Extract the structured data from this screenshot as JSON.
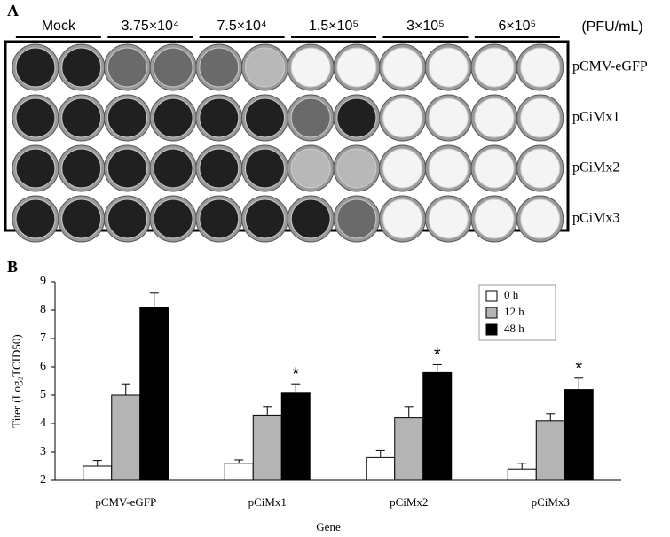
{
  "panel_a": {
    "label": "A",
    "columns": [
      "Mock",
      "3.75×10⁴",
      "7.5×10⁴",
      "1.5×10⁵",
      "3×10⁵",
      "6×10⁵"
    ],
    "unit": "(PFU/mL)",
    "rows": [
      "pCMV-eGFP",
      "pCiMx1",
      "pCiMx2",
      "pCiMx3"
    ]
  },
  "chart_data": {
    "type": "bar",
    "panel_label": "B",
    "x_label": "Gene",
    "y_label": "Titer (Log₂TCID50)",
    "categories": [
      "pCMV-eGFP",
      "pCiMx1",
      "pCiMx2",
      "pCiMx3"
    ],
    "series": [
      {
        "name": "0 h",
        "color": "#ffffff",
        "values": [
          2.5,
          2.6,
          2.8,
          2.4
        ],
        "errors": [
          0.2,
          0.12,
          0.25,
          0.2
        ]
      },
      {
        "name": "12 h",
        "color": "#b4b4b4",
        "values": [
          5.0,
          4.3,
          4.2,
          4.1
        ],
        "errors": [
          0.4,
          0.3,
          0.4,
          0.25
        ]
      },
      {
        "name": "48 h",
        "color": "#000000",
        "values": [
          8.1,
          5.1,
          5.8,
          5.2
        ],
        "errors": [
          0.5,
          0.3,
          0.28,
          0.4
        ],
        "significance": [
          null,
          "*",
          "*",
          "*"
        ]
      }
    ],
    "ylim": [
      2,
      9
    ],
    "yticks": [
      2,
      3,
      4,
      5,
      6,
      7,
      8,
      9
    ],
    "legend": "top-right"
  }
}
